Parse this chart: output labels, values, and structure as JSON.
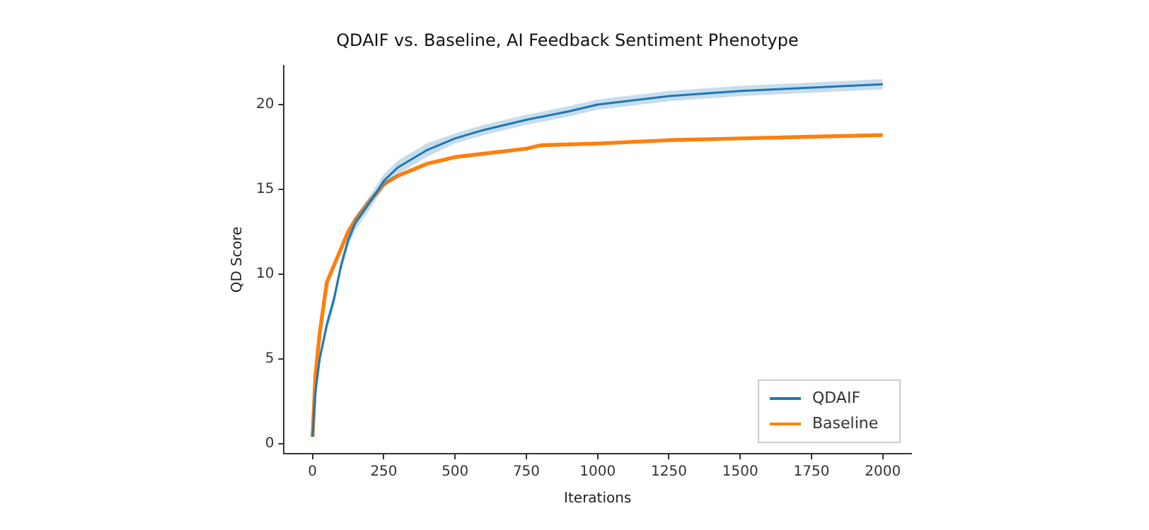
{
  "chart_data": {
    "type": "line",
    "title": "QDAIF vs. Baseline, AI Feedback Sentiment Phenotype",
    "xlabel": "Iterations",
    "ylabel": "QD Score",
    "xlim": [
      -100,
      2100
    ],
    "xticks": [
      0,
      250,
      500,
      750,
      1000,
      1250,
      1500,
      1750,
      2000
    ],
    "ylim": [
      -0.6,
      22.3
    ],
    "yticks": [
      0,
      5,
      10,
      15,
      20
    ],
    "legend": "bottom right",
    "grid": false,
    "series": [
      {
        "name": "QDAIF",
        "color": "#1f77b4",
        "x": [
          0,
          10,
          25,
          50,
          75,
          100,
          125,
          150,
          200,
          250,
          300,
          400,
          500,
          600,
          750,
          900,
          1000,
          1250,
          1500,
          1750,
          2000
        ],
        "values": [
          0.4,
          3,
          5,
          7,
          8.5,
          10.5,
          12,
          13,
          14.2,
          15.5,
          16.3,
          17.3,
          18,
          18.5,
          19.1,
          19.6,
          20,
          20.5,
          20.8,
          21,
          21.2
        ],
        "lower": [
          0.3,
          2.6,
          4.6,
          6.6,
          8.1,
          10.1,
          11.6,
          12.6,
          13.8,
          15.1,
          15.9,
          16.9,
          17.7,
          18.2,
          18.8,
          19.3,
          19.7,
          20.2,
          20.5,
          20.7,
          20.9
        ],
        "upper": [
          0.5,
          3.4,
          5.4,
          7.4,
          8.9,
          10.9,
          12.4,
          13.4,
          14.6,
          15.9,
          16.7,
          17.7,
          18.3,
          18.8,
          19.4,
          19.9,
          20.3,
          20.8,
          21.1,
          21.3,
          21.5
        ]
      },
      {
        "name": "Baseline",
        "color": "#ff7f0e",
        "x": [
          0,
          10,
          25,
          50,
          75,
          100,
          125,
          150,
          200,
          250,
          300,
          400,
          500,
          600,
          750,
          800,
          1000,
          1250,
          1500,
          1750,
          2000
        ],
        "values": [
          0.4,
          4,
          6.5,
          9.5,
          10.5,
          11.5,
          12.5,
          13.2,
          14.3,
          15.3,
          15.8,
          16.5,
          16.9,
          17.1,
          17.4,
          17.6,
          17.7,
          17.9,
          18,
          18.1,
          18.2
        ]
      }
    ]
  }
}
